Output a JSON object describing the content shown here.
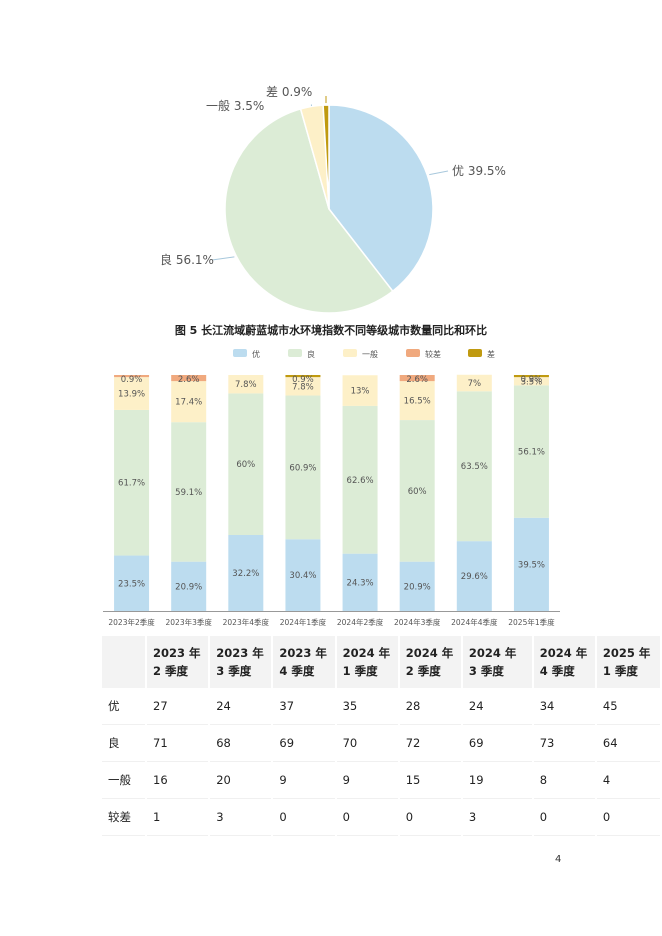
{
  "pie": {
    "slices": [
      {
        "key": "you",
        "label": "优 39.5%",
        "value": 39.5,
        "color": "#bcdcef"
      },
      {
        "key": "liang",
        "label": "良 56.1%",
        "value": 56.1,
        "color": "#dcecd6"
      },
      {
        "key": "yiban",
        "label": "一般 3.5%",
        "value": 3.5,
        "color": "#fdf0c8"
      },
      {
        "key": "jiaocha",
        "label": "",
        "value": 0,
        "color": "#f0a97e"
      },
      {
        "key": "cha",
        "label": "差 0.9%",
        "value": 0.9,
        "color": "#c09a10"
      }
    ]
  },
  "caption": "图 5 长江流域蔚蓝城市水环境指数不同等级城市数量同比和环比",
  "chart_data": {
    "type": "bar",
    "stacked": true,
    "percent": true,
    "categories": [
      "2023年2季度",
      "2023年3季度",
      "2023年4季度",
      "2024年1季度",
      "2024年2季度",
      "2024年3季度",
      "2024年4季度",
      "2025年1季度"
    ],
    "legend": [
      "优",
      "良",
      "一般",
      "较差",
      "差"
    ],
    "legend_position": "top",
    "colors": {
      "优": "#bcdcef",
      "良": "#dcecd6",
      "一般": "#fdf0c8",
      "较差": "#f0a97e",
      "差": "#c09a10"
    },
    "series": [
      {
        "name": "优",
        "values": [
          23.5,
          20.9,
          32.2,
          30.4,
          24.3,
          20.9,
          29.6,
          39.5
        ],
        "labels": [
          "23.5%",
          "20.9%",
          "32.2%",
          "30.4%",
          "24.3%",
          "20.9%",
          "29.6%",
          "39.5%"
        ]
      },
      {
        "name": "良",
        "values": [
          61.7,
          59.1,
          60,
          60.9,
          62.6,
          60,
          63.5,
          56.1
        ],
        "labels": [
          "61.7%",
          "59.1%",
          "60%",
          "60.9%",
          "62.6%",
          "60%",
          "63.5%",
          "56.1%"
        ]
      },
      {
        "name": "一般",
        "values": [
          13.9,
          17.4,
          7.8,
          7.8,
          13,
          16.5,
          7,
          3.5
        ],
        "labels": [
          "13.9%",
          "17.4%",
          "7.8%",
          "7.8%",
          "13%",
          "16.5%",
          "7%",
          "3.5%"
        ]
      },
      {
        "name": "较差",
        "values": [
          0.9,
          2.6,
          0,
          0,
          0,
          2.6,
          0,
          0
        ],
        "labels": [
          "0.9%",
          "2.6%",
          "",
          "",
          "",
          "2.6%",
          "",
          ""
        ]
      },
      {
        "name": "差",
        "values": [
          0,
          0,
          0,
          0.9,
          0,
          0,
          0,
          0.9
        ],
        "labels": [
          "",
          "",
          "",
          "0.9%",
          "",
          "",
          "",
          "0.9%"
        ]
      }
    ],
    "ylim": [
      0,
      100
    ],
    "grid": false
  },
  "table": {
    "headers": [
      "",
      "2023 年\n2 季度",
      "2023 年\n3 季度",
      "2023 年\n4 季度",
      "2024 年\n1 季度",
      "2024 年\n2 季度",
      "2024 年\n3 季度",
      "2024 年\n4 季度",
      "2025 年\n1 季度"
    ],
    "rows": [
      [
        "优",
        "27",
        "24",
        "37",
        "35",
        "28",
        "24",
        "34",
        "45"
      ],
      [
        "良",
        "71",
        "68",
        "69",
        "70",
        "72",
        "69",
        "73",
        "64"
      ],
      [
        "一般",
        "16",
        "20",
        "9",
        "9",
        "15",
        "19",
        "8",
        "4"
      ],
      [
        "较差",
        "1",
        "3",
        "0",
        "0",
        "0",
        "3",
        "0",
        "0"
      ]
    ]
  },
  "page_number": "4"
}
